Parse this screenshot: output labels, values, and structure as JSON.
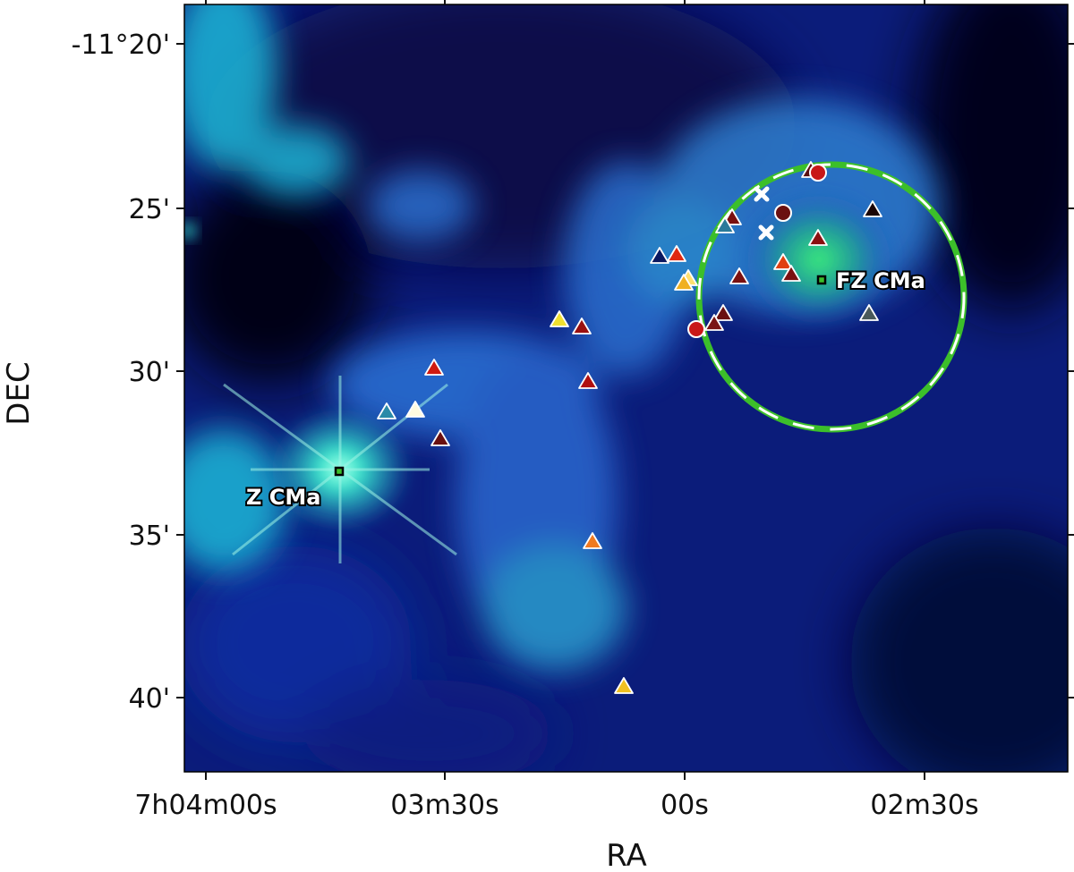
{
  "axes": {
    "xlabel": "RA",
    "ylabel": "DEC",
    "x_ticks": [
      {
        "label": "7h04m00s"
      },
      {
        "label": "03m30s"
      },
      {
        "label": "00s"
      },
      {
        "label": "02m30s"
      }
    ],
    "y_ticks": [
      {
        "label": "-11°20'"
      },
      {
        "label": "25'"
      },
      {
        "label": "30'"
      },
      {
        "label": "35'"
      },
      {
        "label": "40'"
      }
    ]
  },
  "labeled_sources": [
    {
      "name": "Z CMa"
    },
    {
      "name": "FZ CMa"
    }
  ],
  "colors": {
    "circle": "#3cbf2a",
    "background_deep": "#04082a",
    "nebula_blue": "#1a3fbf",
    "nebula_cyan": "#22d3e0",
    "core_green": "#22e08a"
  }
}
